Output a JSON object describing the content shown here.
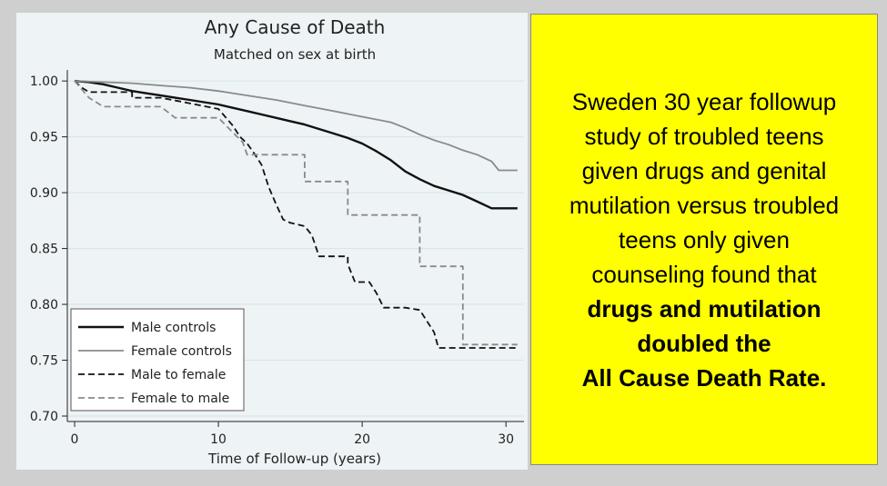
{
  "colors": {
    "panel_bg": "#eef3f5",
    "highlight_bg": "#ffff00",
    "male_controls": "#111111",
    "female_controls": "#8a8a8a",
    "male_to_female": "#111111",
    "female_to_male": "#8a8a8a"
  },
  "caption": {
    "lines": [
      "Sweden 30 year followup",
      "study of troubled teens",
      "given drugs and genital",
      "mutilation versus troubled",
      "teens only given",
      "counseling found that"
    ],
    "bold_lines": [
      "drugs and mutilation",
      "doubled the",
      "All Cause Death Rate."
    ]
  },
  "chart_data": {
    "type": "line",
    "title": "Any Cause of Death",
    "subtitle": "Matched on sex at birth",
    "xlabel": "Time of Follow-up (years)",
    "ylabel": "",
    "xlim": [
      0,
      31
    ],
    "ylim": [
      0.7,
      1.005
    ],
    "xticks": [
      0,
      10,
      20,
      30
    ],
    "xtick_labels": [
      "0",
      "10",
      "20",
      "30"
    ],
    "yticks": [
      0.7,
      0.75,
      0.8,
      0.85,
      0.9,
      0.95,
      1.0
    ],
    "ytick_labels": [
      "0.70",
      "0.75",
      "0.80",
      "0.85",
      "0.90",
      "0.95",
      "1.00"
    ],
    "grid": "horizontal",
    "legend_position": "bottom-left",
    "series": [
      {
        "name": "Male controls",
        "style": "solid",
        "points": [
          [
            0,
            1.0
          ],
          [
            1,
            0.999
          ],
          [
            2,
            0.997
          ],
          [
            3,
            0.994
          ],
          [
            4,
            0.991
          ],
          [
            5,
            0.989
          ],
          [
            6,
            0.987
          ],
          [
            7,
            0.985
          ],
          [
            8,
            0.983
          ],
          [
            9,
            0.981
          ],
          [
            10,
            0.979
          ],
          [
            11,
            0.976
          ],
          [
            12,
            0.973
          ],
          [
            13,
            0.97
          ],
          [
            14,
            0.967
          ],
          [
            15,
            0.964
          ],
          [
            16,
            0.961
          ],
          [
            17,
            0.957
          ],
          [
            18,
            0.953
          ],
          [
            19,
            0.949
          ],
          [
            20,
            0.944
          ],
          [
            21,
            0.937
          ],
          [
            22,
            0.929
          ],
          [
            23,
            0.919
          ],
          [
            24,
            0.912
          ],
          [
            25,
            0.906
          ],
          [
            26,
            0.902
          ],
          [
            27,
            0.898
          ],
          [
            28,
            0.892
          ],
          [
            29,
            0.886
          ],
          [
            30,
            0.886
          ],
          [
            30.8,
            0.886
          ]
        ]
      },
      {
        "name": "Female controls",
        "style": "solid",
        "points": [
          [
            0,
            1.0
          ],
          [
            2,
            0.999
          ],
          [
            4,
            0.998
          ],
          [
            6,
            0.996
          ],
          [
            8,
            0.994
          ],
          [
            10,
            0.991
          ],
          [
            12,
            0.987
          ],
          [
            14,
            0.983
          ],
          [
            16,
            0.978
          ],
          [
            18,
            0.973
          ],
          [
            20,
            0.968
          ],
          [
            22,
            0.963
          ],
          [
            23,
            0.958
          ],
          [
            24,
            0.952
          ],
          [
            25,
            0.947
          ],
          [
            26,
            0.943
          ],
          [
            27,
            0.938
          ],
          [
            28,
            0.934
          ],
          [
            29,
            0.928
          ],
          [
            29.5,
            0.92
          ],
          [
            30,
            0.92
          ],
          [
            30.8,
            0.92
          ]
        ]
      },
      {
        "name": "Male to female",
        "style": "dashed",
        "points": [
          [
            0,
            1.0
          ],
          [
            0.5,
            0.994
          ],
          [
            1,
            0.99
          ],
          [
            4,
            0.99
          ],
          [
            4,
            0.985
          ],
          [
            6,
            0.985
          ],
          [
            8,
            0.98
          ],
          [
            10,
            0.975
          ],
          [
            11,
            0.96
          ],
          [
            11.5,
            0.95
          ],
          [
            12,
            0.944
          ],
          [
            12.5,
            0.935
          ],
          [
            13,
            0.925
          ],
          [
            13.5,
            0.905
          ],
          [
            14,
            0.89
          ],
          [
            14.5,
            0.876
          ],
          [
            15,
            0.873
          ],
          [
            16,
            0.87
          ],
          [
            16.5,
            0.862
          ],
          [
            17,
            0.843
          ],
          [
            19,
            0.843
          ],
          [
            19,
            0.836
          ],
          [
            19.5,
            0.82
          ],
          [
            20.5,
            0.82
          ],
          [
            21,
            0.81
          ],
          [
            21.5,
            0.797
          ],
          [
            23,
            0.797
          ],
          [
            24,
            0.795
          ],
          [
            25,
            0.775
          ],
          [
            25.3,
            0.761
          ],
          [
            30.8,
            0.761
          ]
        ]
      },
      {
        "name": "Female to male",
        "style": "dashed",
        "points": [
          [
            0,
            1.0
          ],
          [
            1,
            0.985
          ],
          [
            2,
            0.977
          ],
          [
            6,
            0.977
          ],
          [
            7,
            0.967
          ],
          [
            10,
            0.967
          ],
          [
            11,
            0.954
          ],
          [
            11.7,
            0.945
          ],
          [
            12,
            0.934
          ],
          [
            16,
            0.934
          ],
          [
            16,
            0.91
          ],
          [
            19,
            0.91
          ],
          [
            19,
            0.88
          ],
          [
            24,
            0.88
          ],
          [
            24,
            0.834
          ],
          [
            27,
            0.834
          ],
          [
            27,
            0.764
          ],
          [
            30.8,
            0.764
          ]
        ]
      }
    ]
  }
}
